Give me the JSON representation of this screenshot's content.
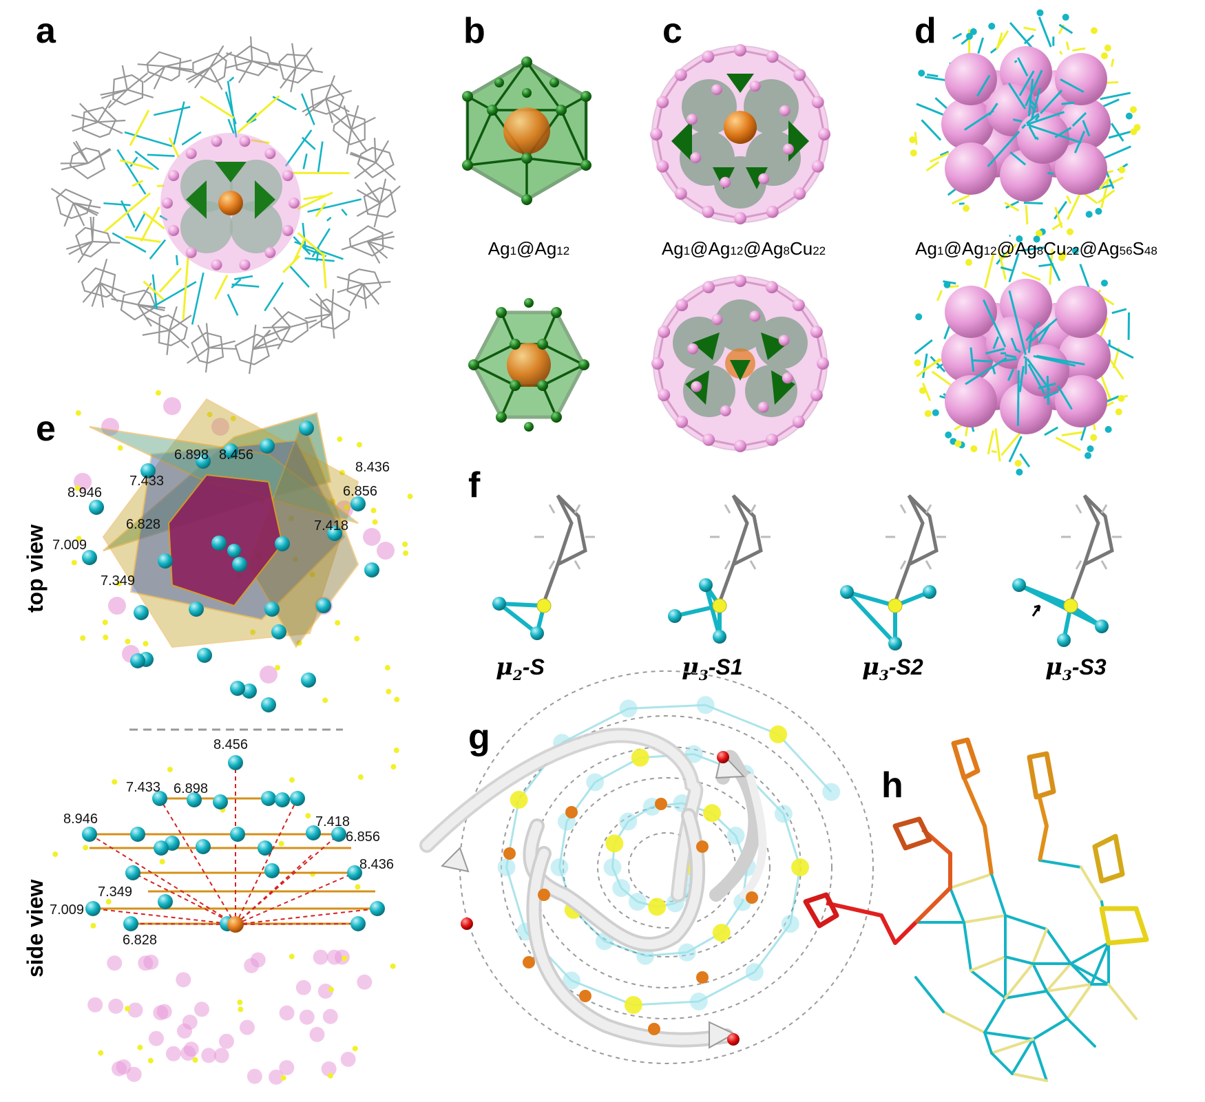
{
  "panels": {
    "a": {
      "label": "a"
    },
    "b": {
      "label": "b",
      "formula": [
        "Ag",
        "1",
        "@Ag",
        "12"
      ]
    },
    "c": {
      "label": "c",
      "formula": [
        "Ag",
        "1",
        "@Ag",
        "12",
        "@Ag",
        "8",
        "Cu",
        "22"
      ]
    },
    "d": {
      "label": "d",
      "formula": [
        "Ag",
        "1",
        "@Ag",
        "12",
        "@Ag",
        "8",
        "Cu",
        "22",
        "@Ag",
        "56",
        "S",
        "48"
      ]
    },
    "e": {
      "label": "e",
      "top_view_label": "top view",
      "side_view_label": "side view",
      "top_distances": [
        "6.898",
        "8.456",
        "8.436",
        "8.946",
        "7.433",
        "6.856",
        "7.418",
        "6.828",
        "7.009",
        "7.349"
      ],
      "side_distances": [
        "8.456",
        "7.433",
        "6.898",
        "8.946",
        "7.418",
        "6.856",
        "8.436",
        "7.349",
        "7.009",
        "6.828"
      ]
    },
    "f": {
      "label": "f",
      "modes": [
        {
          "mu": "μ",
          "sub": "2",
          "suffix": "-S"
        },
        {
          "mu": "μ",
          "sub": "3",
          "suffix": "-S1"
        },
        {
          "mu": "μ",
          "sub": "3",
          "suffix": "-S2"
        },
        {
          "mu": "μ",
          "sub": "3",
          "suffix": "-S3"
        }
      ]
    },
    "g": {
      "label": "g"
    },
    "h": {
      "label": "h"
    }
  },
  "colors": {
    "cu_cyan": "#14b4c4",
    "ag_pink": "#e79ad8",
    "ag_green": "#1a7a1a",
    "center_orange": "#e07a1a",
    "sulfur_yellow": "#f2f02a",
    "carbon_gray": "#8c8c8c",
    "highlight_red": "#d41a1a"
  }
}
